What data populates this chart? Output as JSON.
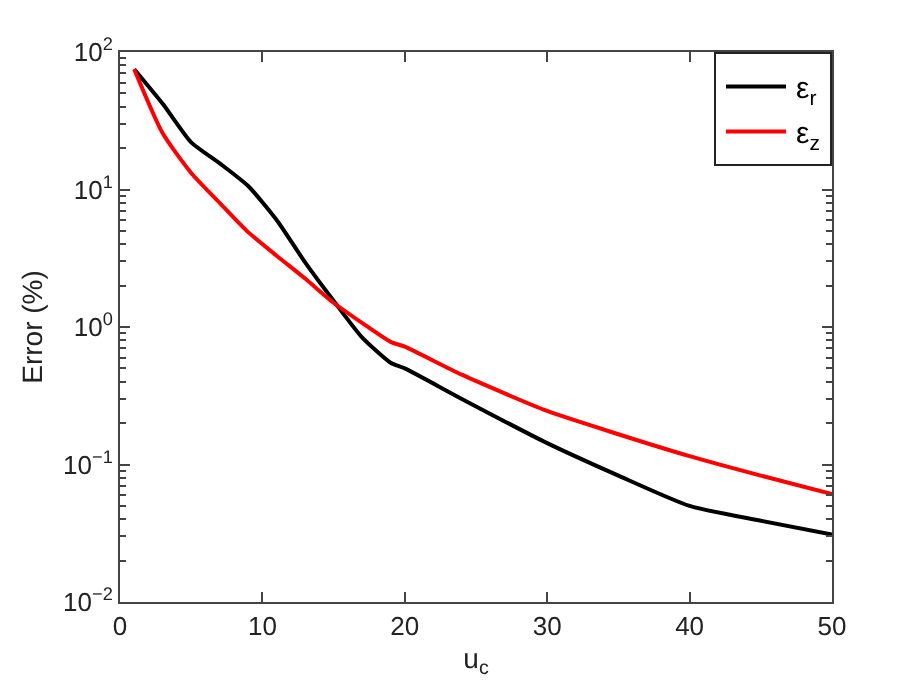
{
  "chart_data": {
    "type": "line",
    "xlabel": "u$_{c}$",
    "ylabel": "Error (%)",
    "log": "y",
    "legend": "top right",
    "marker": "none",
    "line_style": "solid",
    "xlim": [
      0,
      50
    ],
    "xticks": [
      0,
      10,
      20,
      30,
      40,
      50
    ],
    "ylim": [
      0.01,
      100
    ],
    "yticks": [
      {
        "value": 0.01,
        "label": "10$^{−2}$"
      },
      {
        "value": 0.1,
        "label": "10$^{−1}$"
      },
      {
        "value": 1,
        "label": "10$^{0}$"
      },
      {
        "value": 10,
        "label": "10$^{1}$"
      },
      {
        "value": 100,
        "label": "10$^{2}$"
      }
    ],
    "series": [
      {
        "name": "ε$_{r}$",
        "color": "#000000",
        "x": [
          1,
          3,
          5,
          7,
          9,
          11,
          13,
          15,
          17,
          19,
          20,
          24,
          30,
          35,
          40,
          45,
          50
        ],
        "values": [
          75,
          42,
          22,
          15.5,
          10.6,
          6.0,
          2.95,
          1.55,
          0.84,
          0.55,
          0.5,
          0.3,
          0.143,
          0.083,
          0.05,
          0.039,
          0.031
        ]
      },
      {
        "name": "ε$_{z}$",
        "color": "#ff0000",
        "x": [
          1,
          3,
          5,
          7,
          9,
          11,
          13,
          15,
          17,
          19,
          20,
          24,
          30,
          35,
          40,
          45,
          50
        ],
        "values": [
          75,
          25.6,
          13.2,
          8.0,
          4.9,
          3.3,
          2.25,
          1.5,
          1.07,
          0.78,
          0.72,
          0.45,
          0.245,
          0.166,
          0.115,
          0.083,
          0.061
        ]
      }
    ]
  }
}
